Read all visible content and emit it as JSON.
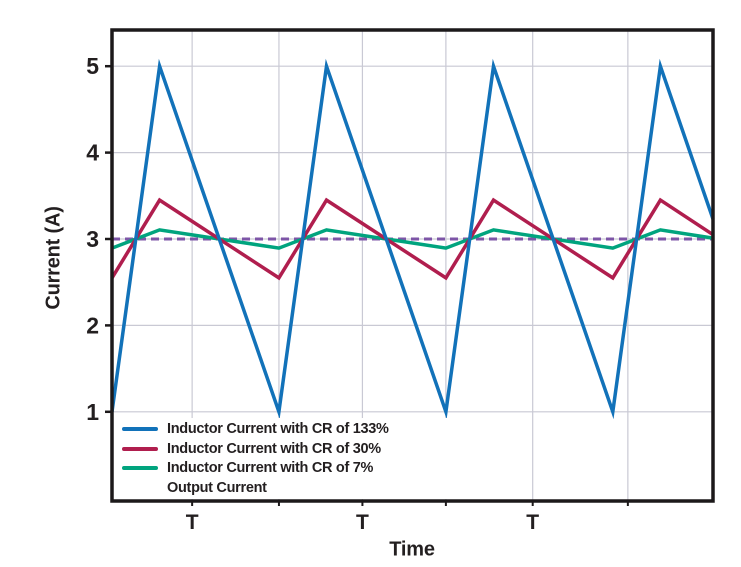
{
  "figure": {
    "background": "#ffffff",
    "axis_color": "#1c191a",
    "grid_color": "#c9c9d4",
    "text_color": "#231f20"
  },
  "chart_data": {
    "type": "line",
    "title": "",
    "xlabel": "Time",
    "ylabel": "Current (A)",
    "x_unit": "switching periods (T)",
    "xlim": [
      0,
      3.6
    ],
    "ylim": [
      -0.03,
      5.42
    ],
    "yticks": [
      1,
      2,
      3,
      4,
      5
    ],
    "xticks": [
      {
        "label": "T",
        "t": 0.48
      },
      {
        "label": "T",
        "t": 1.5
      },
      {
        "label": "T",
        "t": 2.52
      }
    ],
    "vgrid_t": [
      0.48,
      1.0,
      1.5,
      2.0,
      2.52,
      3.09
    ],
    "grid": true,
    "legend_position": "inside-bottom-left",
    "duty_cycle": 0.285,
    "output_current_A": 3,
    "series": [
      {
        "name": "Inductor Current with CR of 133%",
        "color": "#1272b9",
        "style": "solid",
        "ripple_ratio_pct": 133,
        "peak_A": 5,
        "valley_A": 1,
        "points": [
          [
            0,
            1
          ],
          [
            0.285,
            5
          ],
          [
            1,
            1
          ],
          [
            1.285,
            5
          ],
          [
            2,
            1
          ],
          [
            2.285,
            5
          ],
          [
            3,
            1
          ],
          [
            3.285,
            5
          ],
          [
            3.6,
            3.23
          ]
        ]
      },
      {
        "name": "Inductor Current with CR of 30%",
        "color": "#b01e4e",
        "style": "solid",
        "ripple_ratio_pct": 30,
        "peak_A": 3.45,
        "valley_A": 2.55,
        "points": [
          [
            0,
            2.55
          ],
          [
            0.285,
            3.45
          ],
          [
            1,
            2.55
          ],
          [
            1.285,
            3.45
          ],
          [
            2,
            2.55
          ],
          [
            2.285,
            3.45
          ],
          [
            3,
            2.55
          ],
          [
            3.285,
            3.45
          ],
          [
            3.6,
            3.05
          ]
        ]
      },
      {
        "name": "Inductor Current with CR of 7%",
        "color": "#00a47e",
        "style": "solid",
        "ripple_ratio_pct": 7,
        "peak_A": 3.105,
        "valley_A": 2.895,
        "points": [
          [
            0,
            2.895
          ],
          [
            0.285,
            3.105
          ],
          [
            1,
            2.895
          ],
          [
            1.285,
            3.105
          ],
          [
            2,
            2.895
          ],
          [
            2.285,
            3.105
          ],
          [
            3,
            2.895
          ],
          [
            3.285,
            3.105
          ],
          [
            3.6,
            3.01
          ]
        ]
      },
      {
        "name": "Output Current",
        "color": "#7d55a7",
        "style": "dashed",
        "points": [
          [
            0,
            3
          ],
          [
            3.6,
            3
          ]
        ]
      }
    ]
  }
}
